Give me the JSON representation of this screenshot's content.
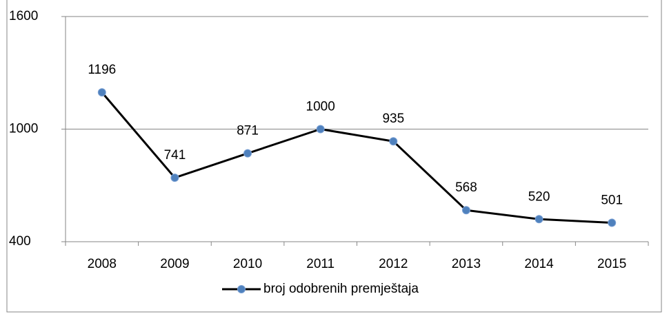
{
  "chart_data": {
    "type": "line",
    "categories": [
      "2008",
      "2009",
      "2010",
      "2011",
      "2012",
      "2013",
      "2014",
      "2015"
    ],
    "series": [
      {
        "name": "broj odobrenih premještaja",
        "color": "#000000",
        "marker_color": "#4f81bd",
        "values": [
          1196,
          741,
          871,
          1000,
          935,
          568,
          520,
          501
        ]
      }
    ],
    "ylim": [
      400,
      1600
    ],
    "yticks": [
      400,
      1000,
      1600
    ],
    "grid": true,
    "legend": "bottom"
  }
}
